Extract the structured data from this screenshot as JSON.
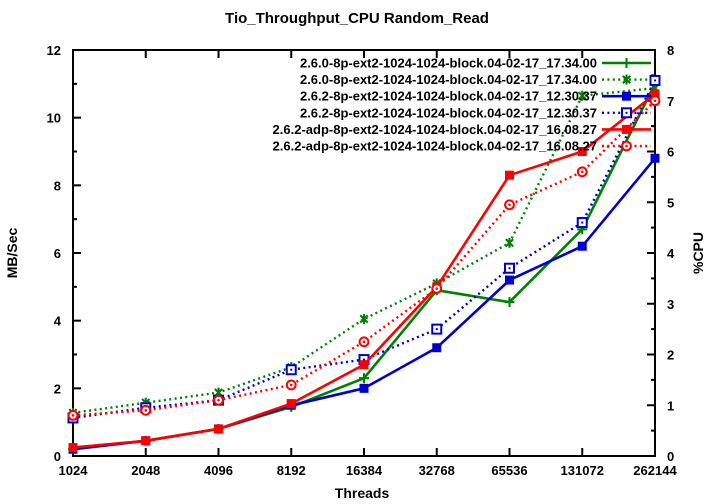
{
  "title": "Tio_Throughput_CPU Random_Read",
  "colors": {
    "green": "#008000",
    "blue": "#0000cd",
    "red": "#ff0000",
    "axis": "#000000",
    "background": "#ffffff"
  },
  "chart_data": {
    "type": "line",
    "title": "Tio_Throughput_CPU Random_Read",
    "xlabel": "Threads",
    "categories": [
      "1024",
      "2048",
      "4096",
      "8192",
      "16384",
      "32768",
      "65536",
      "131072",
      "262144"
    ],
    "y_left": {
      "label": "MB/Sec",
      "min": 0,
      "max": 12,
      "tick_step": 2,
      "minor_step": 1,
      "ticks": [
        "0",
        "2",
        "4",
        "6",
        "8",
        "10",
        "12"
      ]
    },
    "y_right": {
      "label": "%CPU",
      "min": 0,
      "max": 8,
      "tick_step": 1,
      "minor_step": 0.5,
      "ticks": [
        "0",
        "1",
        "2",
        "3",
        "4",
        "5",
        "6",
        "7",
        "8"
      ]
    },
    "grid": false,
    "legend_position": "top-right-inside",
    "series": [
      {
        "name": "2.6.0-8p-ext2-1024-1024-block.04-02-17_17.34.00",
        "color": "#008000",
        "line": "solid",
        "marker": "plus",
        "axis": "left",
        "values": [
          0.2,
          0.45,
          0.8,
          1.45,
          2.3,
          4.9,
          4.55,
          6.7,
          11.0
        ]
      },
      {
        "name": "2.6.0-8p-ext2-1024-1024-block.04-02-17_17.34.00",
        "color": "#008000",
        "line": "dotted",
        "marker": "asterisk",
        "axis": "right",
        "values": [
          0.85,
          1.05,
          1.25,
          1.75,
          2.7,
          3.4,
          4.2,
          7.1,
          7.25
        ]
      },
      {
        "name": "2.6.2-8p-ext2-1024-1024-block.04-02-17_12.30.37",
        "color": "#0000cd",
        "line": "solid",
        "marker": "filled-square",
        "axis": "left",
        "values": [
          0.2,
          0.45,
          0.8,
          1.5,
          2.0,
          3.2,
          5.2,
          6.2,
          8.8
        ]
      },
      {
        "name": "2.6.2-8p-ext2-1024-1024-block.04-02-17_12.30.37",
        "color": "#0000cd",
        "line": "dotted",
        "marker": "open-square",
        "axis": "right",
        "values": [
          0.75,
          0.95,
          1.1,
          1.7,
          1.9,
          2.5,
          3.7,
          4.6,
          7.4
        ]
      },
      {
        "name": "2.6.2-adp-8p-ext2-1024-1024-block.04-02-17_16.08.27",
        "color": "#ff0000",
        "line": "solid",
        "marker": "filled-square",
        "axis": "left",
        "values": [
          0.25,
          0.45,
          0.8,
          1.55,
          2.7,
          5.0,
          8.3,
          9.0,
          10.7
        ]
      },
      {
        "name": "2.6.2-adp-8p-ext2-1024-1024-block.04-02-17_16.08.27",
        "color": "#ff0000",
        "line": "dotted",
        "marker": "open-circle",
        "axis": "right",
        "values": [
          0.8,
          0.9,
          1.1,
          1.4,
          2.25,
          3.3,
          4.95,
          5.6,
          7.0
        ]
      }
    ]
  }
}
